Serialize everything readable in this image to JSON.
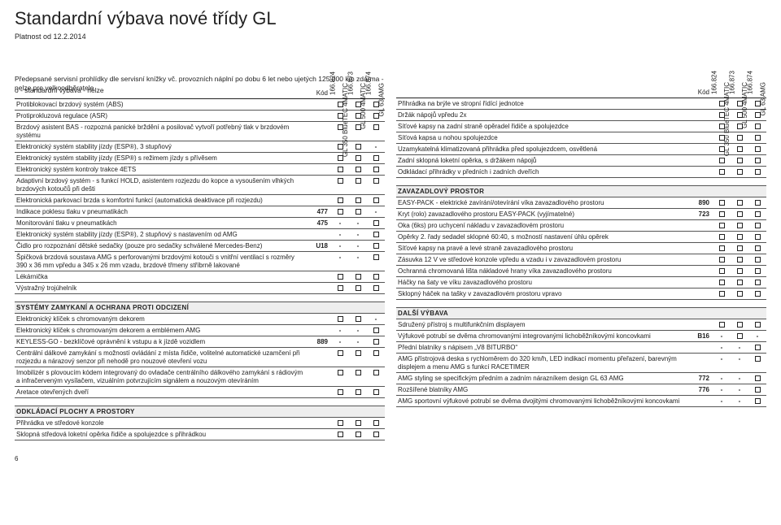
{
  "title": "Standardní výbava nové třídy GL",
  "validity": "Platnost od 12.2.2014",
  "intro": "Předepsané servisní prohlídky dle servisní knížky vč. provozních náplní po dobu 6 let nebo ujetých 125 000 km zdarma - nelze pro velkoodběratele",
  "legend": "o  - standardní výbava     - nelze",
  "kod_label": "Kód",
  "variant_names": [
    "GL 350 BlueTEC 4MATIC",
    "GL 500 4MATIC",
    "GL 63 AMG"
  ],
  "variant_codes": [
    "166.824",
    "166.873",
    "166.874"
  ],
  "page_num": "6",
  "sections_left": [
    {
      "rows": [
        {
          "desc": "Protiblokovací brzdový systém (ABS)",
          "kod": "",
          "v": [
            "box",
            "box",
            "box"
          ]
        },
        {
          "desc": "Protiprokluzová regulace (ASR)",
          "kod": "",
          "v": [
            "box",
            "box",
            "box"
          ]
        },
        {
          "desc": "Brzdový asistent BAS - rozpozná panické brždění a posilovač vytvoří potřebný tlak v brzdovém systému",
          "kod": "",
          "v": [
            "box",
            "box",
            "box"
          ]
        },
        {
          "desc": "Elektronický systém stability jízdy (ESP®), 3 stupňový",
          "kod": "",
          "v": [
            "box",
            "box",
            "-"
          ]
        },
        {
          "desc": "Elektronický systém stability jízdy (ESP®) s režimem jízdy s přívěsem",
          "kod": "",
          "v": [
            "box",
            "box",
            "box"
          ]
        },
        {
          "desc": "Elektronický systém kontroly trakce 4ETS",
          "kod": "",
          "v": [
            "box",
            "box",
            "box"
          ]
        },
        {
          "desc": "Adaptivní brzdový systém - s funkcí HOLD, asistentem rozjezdu do kopce a vysoušením vlhkých brzdových kotoučů při dešti",
          "kod": "",
          "v": [
            "box",
            "box",
            "box"
          ]
        },
        {
          "desc": "Elektronická parkovací brzda s komfortní funkcí (automatická deaktivace při rozjezdu)",
          "kod": "",
          "v": [
            "box",
            "box",
            "box"
          ]
        },
        {
          "desc": "Indikace poklesu tlaku v pneumatikách",
          "kod": "477",
          "v": [
            "box",
            "box",
            "-"
          ]
        },
        {
          "desc": "Monitorování tlaku v pneumatikách",
          "kod": "475",
          "v": [
            "-",
            "-",
            "box"
          ]
        },
        {
          "desc": "Elektronický systém stability jízdy (ESP®), 2 stupňový s nastavením od AMG",
          "kod": "",
          "v": [
            "-",
            "-",
            "box"
          ]
        },
        {
          "desc": "Čidlo pro rozpoznání dětské sedačky (pouze pro sedačky schválené Mercedes-Benz)",
          "kod": "U18",
          "v": [
            "-",
            "-",
            "box"
          ]
        },
        {
          "desc": "Špičková brzdová soustava AMG s perforovanými brzdovými kotouči s vnitřní ventilací s rozměry 390 x 36 mm vpředu a 345 x 26 mm vzadu, brzdové třmeny stříbrně lakované",
          "kod": "",
          "v": [
            "-",
            "-",
            "box"
          ]
        },
        {
          "desc": "Lékárnička",
          "kod": "",
          "v": [
            "box",
            "box",
            "box"
          ]
        },
        {
          "desc": "Výstražný trojúhelník",
          "kod": "",
          "v": [
            "box",
            "box",
            "box"
          ]
        }
      ]
    },
    {
      "title": "SYSTÉMY ZAMYKANÍ A OCHRANA PROTI ODCIZENÍ",
      "rows": [
        {
          "desc": "Elektronický klíček s chromovaným dekorem",
          "kod": "",
          "v": [
            "box",
            "box",
            "-"
          ]
        },
        {
          "desc": "Elektronický klíček s chromovaným dekorem a emblémem AMG",
          "kod": "",
          "v": [
            "-",
            "-",
            "box"
          ]
        },
        {
          "desc": "KEYLESS-GO - bezklíčové oprávnění k vstupu a k jízdě vozidlem",
          "kod": "889",
          "v": [
            "-",
            "-",
            "box"
          ]
        },
        {
          "desc": "Centrální dálkové zamykání s možností ovládání z místa řidiče, volitelné automatické uzamčení při rozjezdu a nárazový senzor při nehodě pro nouzové otevření vozu",
          "kod": "",
          "v": [
            "box",
            "box",
            "box"
          ]
        },
        {
          "desc": "Imobilizér s plovoucím kódem integrovaný do ovladače centrálního dálkového zamykání s rádiovým a infračerveným vysílačem, vizuálním potvrzujícím signálem a nouzovým otevíráním",
          "kod": "",
          "v": [
            "box",
            "box",
            "box"
          ]
        },
        {
          "desc": "Aretace otevřených dveří",
          "kod": "",
          "v": [
            "box",
            "box",
            "box"
          ]
        }
      ]
    },
    {
      "title": "ODKLÁDACÍ PLOCHY A PROSTORY",
      "rows": [
        {
          "desc": "Přihrádka ve středové konzole",
          "kod": "",
          "v": [
            "box",
            "box",
            "box"
          ]
        },
        {
          "desc": "Sklopná středová loketní opěrka řidiče a spolujezdce s přihrádkou",
          "kod": "",
          "v": [
            "box",
            "box",
            "box"
          ]
        }
      ]
    }
  ],
  "sections_right": [
    {
      "rows": [
        {
          "desc": "Přihrádka na brýle ve stropní řídící jednotce",
          "kod": "",
          "v": [
            "box",
            "box",
            "box"
          ]
        },
        {
          "desc": "Držák nápojů vpředu 2x",
          "kod": "",
          "v": [
            "box",
            "box",
            "box"
          ]
        },
        {
          "desc": "Síťové kapsy na zadní straně opěradel řidiče a spolujezdce",
          "kod": "",
          "v": [
            "box",
            "box",
            "box"
          ]
        },
        {
          "desc": "Síťová kapsa u nohou spolujezdce",
          "kod": "",
          "v": [
            "box",
            "box",
            "box"
          ]
        },
        {
          "desc": "Uzamykatelná klimatizovaná přihrádka před spolujezdcem, osvětlená",
          "kod": "",
          "v": [
            "box",
            "box",
            "box"
          ]
        },
        {
          "desc": "Zadní sklopná loketní opěrka, s držákem nápojů",
          "kod": "",
          "v": [
            "box",
            "box",
            "box"
          ]
        },
        {
          "desc": "Odkládací přihrádky v předních i zadních dveřích",
          "kod": "",
          "v": [
            "box",
            "box",
            "box"
          ]
        }
      ]
    },
    {
      "title": "ZAVAZADLOVÝ PROSTOR",
      "rows": [
        {
          "desc": "EASY-PACK - elektrické zavírání/otevírání víka zavazadlového prostoru",
          "kod": "890",
          "v": [
            "box",
            "box",
            "box"
          ]
        },
        {
          "desc": "Kryt (rolo) zavazadlového prostoru EASY-PACK (vyjímatelné)",
          "kod": "723",
          "v": [
            "box",
            "box",
            "box"
          ]
        },
        {
          "desc": "Oka (6ks) pro uchycení nákladu v zavazadlovém prostoru",
          "kod": "",
          "v": [
            "box",
            "box",
            "box"
          ]
        },
        {
          "desc": "Opěrky 2. řady sedadel sklopné 60:40, s možností nastavení úhlu opěrek",
          "kod": "",
          "v": [
            "box",
            "box",
            "box"
          ]
        },
        {
          "desc": "Síťové kapsy na pravé a levé straně zavazadlového prostoru",
          "kod": "",
          "v": [
            "box",
            "box",
            "box"
          ]
        },
        {
          "desc": "Zásuvka 12 V ve středové konzole vpředu a vzadu i v zavazadlovém prostoru",
          "kod": "",
          "v": [
            "box",
            "box",
            "box"
          ]
        },
        {
          "desc": "Ochranná chromovaná lišta nákladové hrany víka zavazadlového prostoru",
          "kod": "",
          "v": [
            "box",
            "box",
            "box"
          ]
        },
        {
          "desc": "Háčky na šaty ve víku zavazadlového prostoru",
          "kod": "",
          "v": [
            "box",
            "box",
            "box"
          ]
        },
        {
          "desc": "Sklopný háček na tašky v zavazadlovém prostoru vpravo",
          "kod": "",
          "v": [
            "box",
            "box",
            "box"
          ]
        }
      ]
    },
    {
      "title": "DALŠÍ VÝBAVA",
      "rows": [
        {
          "desc": "Sdružený přístroj s multifunkčním displayem",
          "kod": "",
          "v": [
            "box",
            "box",
            "box"
          ]
        },
        {
          "desc": "Výfukové potrubí se dvěma chromovanými integrovanými lichoběžníkovými koncovkami",
          "kod": "B16",
          "v": [
            "-",
            "box",
            "-"
          ]
        },
        {
          "desc": "Přední blatníky s nápisem „V8 BITURBO“",
          "kod": "",
          "v": [
            "-",
            "-",
            "box"
          ]
        },
        {
          "desc": "AMG přístrojová deska s rychloměrem do 320 km/h, LED indikací momentu přeřazení, barevným displejem a menu AMG s funkcí RACETIMER",
          "kod": "",
          "v": [
            "-",
            "-",
            "box"
          ]
        },
        {
          "desc": "AMG styling se specifickým předním a zadním nárazníkem design GL 63 AMG",
          "kod": "772",
          "v": [
            "-",
            "-",
            "box"
          ]
        },
        {
          "desc": "Rozšířené blatníky AMG",
          "kod": "776",
          "v": [
            "-",
            "-",
            "box"
          ]
        },
        {
          "desc": "AMG sportovní výfukové potrubí se dvěma dvojitými chromovanými lichoběžníkovými koncovkami",
          "kod": "",
          "v": [
            "-",
            "-",
            "box"
          ]
        }
      ]
    }
  ]
}
